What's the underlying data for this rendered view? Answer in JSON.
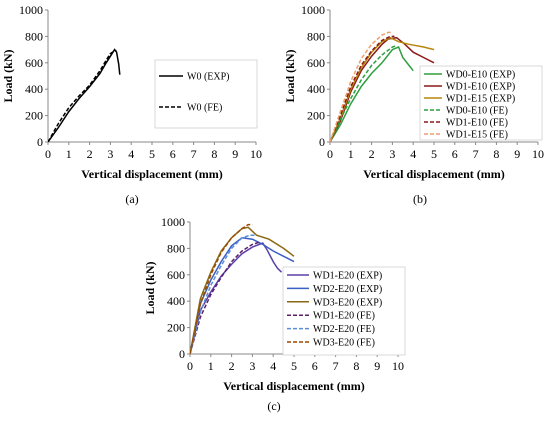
{
  "chart_data": [
    {
      "type": "line",
      "panel_label": "(a)",
      "xlabel": "Vertical displacement (mm)",
      "ylabel": "Load (kN)",
      "xlim": [
        0,
        10
      ],
      "ylim": [
        0,
        1000
      ],
      "x_ticks": [
        "0",
        "1",
        "2",
        "3",
        "4",
        "5",
        "6",
        "7",
        "8",
        "9",
        "10"
      ],
      "y_ticks": [
        "0",
        "200",
        "400",
        "600",
        "800",
        "1000"
      ],
      "grid": false,
      "legend_position": "right",
      "series": [
        {
          "name": "W0 (EXP)",
          "color": "#000000",
          "dash": "solid",
          "points": [
            [
              0,
              0
            ],
            [
              0.5,
              110
            ],
            [
              1.0,
              230
            ],
            [
              1.5,
              330
            ],
            [
              2.0,
              420
            ],
            [
              2.5,
              520
            ],
            [
              2.8,
              600
            ],
            [
              3.0,
              650
            ],
            [
              3.2,
              700
            ],
            [
              3.3,
              680
            ],
            [
              3.4,
              590
            ],
            [
              3.45,
              510
            ]
          ]
        },
        {
          "name": "W0 (FE)",
          "color": "#000000",
          "dash": "dashed",
          "points": [
            [
              0,
              0
            ],
            [
              0.5,
              140
            ],
            [
              1.0,
              260
            ],
            [
              1.5,
              350
            ],
            [
              2.0,
              430
            ],
            [
              2.5,
              540
            ],
            [
              2.8,
              620
            ],
            [
              3.0,
              670
            ],
            [
              3.2,
              690
            ],
            [
              3.3,
              690
            ]
          ]
        }
      ]
    },
    {
      "type": "line",
      "panel_label": "(b)",
      "xlabel": "Vertical displacement (mm)",
      "ylabel": "Load (kN)",
      "xlim": [
        0,
        10
      ],
      "ylim": [
        0,
        1000
      ],
      "x_ticks": [
        "0",
        "1",
        "2",
        "3",
        "4",
        "5",
        "6",
        "7",
        "8",
        "9",
        "10"
      ],
      "y_ticks": [
        "0",
        "200",
        "400",
        "600",
        "800",
        "1000"
      ],
      "grid": false,
      "legend_position": "right",
      "series": [
        {
          "name": "WD0-E10 (EXP)",
          "color": "#2e9e3e",
          "dash": "solid",
          "points": [
            [
              0,
              0
            ],
            [
              0.5,
              130
            ],
            [
              1.0,
              290
            ],
            [
              1.5,
              420
            ],
            [
              2.0,
              520
            ],
            [
              2.5,
              600
            ],
            [
              3.0,
              700
            ],
            [
              3.3,
              720
            ],
            [
              3.5,
              640
            ],
            [
              3.8,
              580
            ],
            [
              4.0,
              540
            ]
          ]
        },
        {
          "name": "WD1-E10 (EXP)",
          "color": "#8b1a1a",
          "dash": "solid",
          "points": [
            [
              0,
              0
            ],
            [
              0.5,
              160
            ],
            [
              1.0,
              380
            ],
            [
              1.5,
              540
            ],
            [
              2.0,
              650
            ],
            [
              2.5,
              740
            ],
            [
              2.8,
              780
            ],
            [
              3.2,
              790
            ],
            [
              3.6,
              740
            ],
            [
              4.0,
              680
            ],
            [
              4.5,
              640
            ],
            [
              5.0,
              600
            ]
          ]
        },
        {
          "name": "WD1-E15 (EXP)",
          "color": "#b8860b",
          "dash": "solid",
          "points": [
            [
              0,
              0
            ],
            [
              0.5,
              180
            ],
            [
              1.0,
              400
            ],
            [
              1.5,
              560
            ],
            [
              2.0,
              680
            ],
            [
              2.5,
              760
            ],
            [
              2.9,
              790
            ],
            [
              3.3,
              760
            ],
            [
              3.8,
              740
            ],
            [
              4.5,
              720
            ],
            [
              5.0,
              700
            ]
          ]
        },
        {
          "name": "WD0-E10 (FE)",
          "color": "#2e9e3e",
          "dash": "dashed",
          "points": [
            [
              0,
              0
            ],
            [
              0.5,
              170
            ],
            [
              1.0,
              330
            ],
            [
              1.5,
              470
            ],
            [
              2.0,
              580
            ],
            [
              2.5,
              660
            ],
            [
              3.0,
              720
            ],
            [
              3.2,
              730
            ]
          ]
        },
        {
          "name": "WD1-E10 (FE)",
          "color": "#8b1a1a",
          "dash": "dashed",
          "points": [
            [
              0,
              0
            ],
            [
              0.5,
              200
            ],
            [
              1.0,
              420
            ],
            [
              1.5,
              580
            ],
            [
              2.0,
              690
            ],
            [
              2.5,
              770
            ],
            [
              2.9,
              800
            ],
            [
              3.1,
              800
            ]
          ]
        },
        {
          "name": "WD1-E15 (FE)",
          "color": "#e8a070",
          "dash": "dashed",
          "points": [
            [
              0,
              0
            ],
            [
              0.5,
              230
            ],
            [
              1.0,
              460
            ],
            [
              1.5,
              630
            ],
            [
              2.0,
              740
            ],
            [
              2.5,
              810
            ],
            [
              2.8,
              830
            ],
            [
              3.0,
              830
            ]
          ]
        }
      ]
    },
    {
      "type": "line",
      "panel_label": "(c)",
      "xlabel": "Vertical displacement (mm)",
      "ylabel": "Load (kN)",
      "xlim": [
        0,
        10
      ],
      "ylim": [
        0,
        1000
      ],
      "x_ticks": [
        "0",
        "1",
        "2",
        "3",
        "4",
        "5",
        "6",
        "7",
        "8",
        "9",
        "10"
      ],
      "y_ticks": [
        "0",
        "200",
        "400",
        "600",
        "800",
        "1000"
      ],
      "grid": false,
      "legend_position": "right",
      "series": [
        {
          "name": "WD1-E20 (EXP)",
          "color": "#5b3fa8",
          "dash": "solid",
          "points": [
            [
              0,
              0
            ],
            [
              0.5,
              330
            ],
            [
              1.0,
              470
            ],
            [
              1.5,
              590
            ],
            [
              2.0,
              680
            ],
            [
              2.5,
              760
            ],
            [
              3.0,
              810
            ],
            [
              3.5,
              840
            ],
            [
              3.7,
              790
            ],
            [
              4.0,
              700
            ],
            [
              4.2,
              650
            ],
            [
              4.4,
              620
            ]
          ]
        },
        {
          "name": "WD2-E20 (EXP)",
          "color": "#3c5fc4",
          "dash": "solid",
          "points": [
            [
              0,
              0
            ],
            [
              0.5,
              380
            ],
            [
              1.0,
              560
            ],
            [
              1.5,
              700
            ],
            [
              2.0,
              820
            ],
            [
              2.5,
              880
            ],
            [
              3.0,
              870
            ],
            [
              3.5,
              830
            ],
            [
              4.0,
              780
            ],
            [
              4.5,
              740
            ],
            [
              5.0,
              700
            ]
          ]
        },
        {
          "name": "WD3-E20 (EXP)",
          "color": "#8b6914",
          "dash": "solid",
          "points": [
            [
              0,
              0
            ],
            [
              0.5,
              420
            ],
            [
              1.0,
              620
            ],
            [
              1.5,
              780
            ],
            [
              2.0,
              880
            ],
            [
              2.5,
              950
            ],
            [
              2.8,
              960
            ],
            [
              3.2,
              900
            ],
            [
              3.8,
              870
            ],
            [
              4.5,
              800
            ],
            [
              5.0,
              740
            ]
          ]
        },
        {
          "name": "WD1-E20 (FE)",
          "color": "#5b1f6e",
          "dash": "dashed",
          "points": [
            [
              0,
              0
            ],
            [
              0.5,
              280
            ],
            [
              1.0,
              450
            ],
            [
              1.5,
              580
            ],
            [
              2.0,
              700
            ],
            [
              2.5,
              780
            ],
            [
              3.0,
              830
            ],
            [
              3.4,
              850
            ]
          ]
        },
        {
          "name": "WD2-E20 (FE)",
          "color": "#5a8fd8",
          "dash": "dashed",
          "points": [
            [
              0,
              0
            ],
            [
              0.5,
              320
            ],
            [
              1.0,
              520
            ],
            [
              1.5,
              670
            ],
            [
              2.0,
              800
            ],
            [
              2.5,
              880
            ],
            [
              2.9,
              900
            ],
            [
              3.1,
              900
            ]
          ]
        },
        {
          "name": "WD3-E20 (FE)",
          "color": "#9b4a00",
          "dash": "dashed",
          "points": [
            [
              0,
              0
            ],
            [
              0.5,
              380
            ],
            [
              1.0,
              600
            ],
            [
              1.5,
              770
            ],
            [
              2.0,
              880
            ],
            [
              2.5,
              950
            ],
            [
              2.8,
              980
            ],
            [
              3.0,
              980
            ]
          ]
        }
      ]
    }
  ]
}
